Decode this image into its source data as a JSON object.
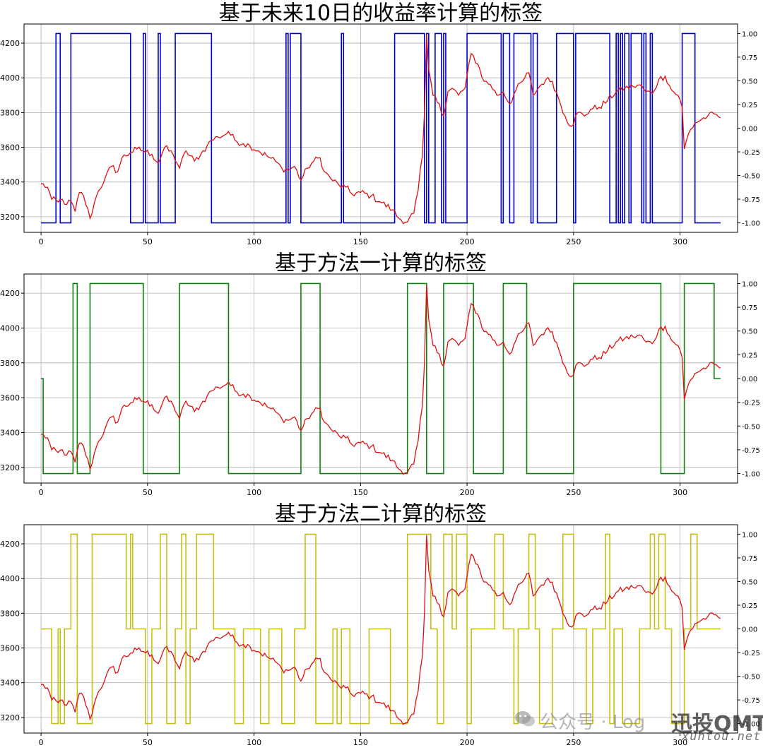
{
  "chart_data": [
    {
      "type": "line",
      "title": "基于未来10日的收益率计算的标签",
      "xticks": [
        0,
        50,
        100,
        150,
        200,
        250,
        300
      ],
      "ylim": [
        3110,
        4310
      ],
      "yticks": [
        3200,
        3400,
        3600,
        3800,
        4000,
        4200
      ],
      "y2lim": [
        -1.1,
        1.1
      ],
      "y2ticks": [
        "1.00",
        "0.75",
        "0.50",
        "0.25",
        "0.00",
        "-0.25",
        "-0.50",
        "-0.75",
        "-1.00"
      ],
      "grid": true,
      "price_color": "#e01010",
      "label_color": "#0000cc",
      "label_changes": [
        [
          0,
          -1
        ],
        [
          7,
          1
        ],
        [
          9,
          -1
        ],
        [
          14,
          1
        ],
        [
          42,
          -1
        ],
        [
          48,
          1
        ],
        [
          49,
          -1
        ],
        [
          55,
          1
        ],
        [
          56,
          -1
        ],
        [
          63,
          1
        ],
        [
          80,
          -1
        ],
        [
          115,
          1
        ],
        [
          116,
          -1
        ],
        [
          117,
          1
        ],
        [
          122,
          -1
        ],
        [
          141,
          1
        ],
        [
          142,
          -1
        ],
        [
          166,
          1
        ],
        [
          180,
          -1
        ],
        [
          181,
          1
        ],
        [
          182,
          -1
        ],
        [
          185,
          1
        ],
        [
          188,
          -1
        ],
        [
          189,
          1
        ],
        [
          190,
          -1
        ],
        [
          200,
          1
        ],
        [
          216,
          -1
        ],
        [
          217,
          1
        ],
        [
          220,
          -1
        ],
        [
          222,
          1
        ],
        [
          230,
          -1
        ],
        [
          231,
          1
        ],
        [
          233,
          -1
        ],
        [
          242,
          1
        ],
        [
          250,
          -1
        ],
        [
          251,
          1
        ],
        [
          267,
          -1
        ],
        [
          270,
          1
        ],
        [
          271,
          -1
        ],
        [
          272,
          1
        ],
        [
          273,
          -1
        ],
        [
          274,
          1
        ],
        [
          276,
          -1
        ],
        [
          277,
          1
        ],
        [
          282,
          -1
        ],
        [
          283,
          1
        ],
        [
          284,
          -1
        ],
        [
          286,
          1
        ],
        [
          287,
          -1
        ],
        [
          301,
          1
        ],
        [
          307,
          -1
        ],
        [
          319,
          -1
        ]
      ]
    },
    {
      "type": "line",
      "title": "基于方法一计算的标签",
      "xticks": [
        0,
        50,
        100,
        150,
        200,
        250,
        300
      ],
      "ylim": [
        3110,
        4310
      ],
      "yticks": [
        3200,
        3400,
        3600,
        3800,
        4000,
        4200
      ],
      "y2lim": [
        -1.1,
        1.1
      ],
      "y2ticks": [
        "1.00",
        "0.75",
        "0.50",
        "0.25",
        "0.00",
        "-0.25",
        "-0.50",
        "-0.75",
        "-1.00"
      ],
      "grid": true,
      "price_color": "#e01010",
      "label_color": "#108010",
      "label_changes": [
        [
          0,
          0
        ],
        [
          1,
          -1
        ],
        [
          15,
          1
        ],
        [
          17,
          -1
        ],
        [
          23,
          1
        ],
        [
          48,
          -1
        ],
        [
          65,
          1
        ],
        [
          88,
          -1
        ],
        [
          122,
          1
        ],
        [
          131,
          -1
        ],
        [
          172,
          1
        ],
        [
          181,
          -1
        ],
        [
          189,
          1
        ],
        [
          203,
          -1
        ],
        [
          217,
          1
        ],
        [
          228,
          -1
        ],
        [
          250,
          1
        ],
        [
          291,
          -1
        ],
        [
          302,
          1
        ],
        [
          316,
          0
        ],
        [
          319,
          0
        ]
      ]
    },
    {
      "type": "line",
      "title": "基于方法二计算的标签",
      "xticks": [
        0,
        50,
        100,
        150,
        200,
        250,
        300
      ],
      "ylim": [
        3110,
        4310
      ],
      "yticks": [
        3200,
        3400,
        3600,
        3800,
        4000,
        4200
      ],
      "y2lim": [
        -1.1,
        1.1
      ],
      "y2ticks": [
        "1.00",
        "0.75",
        "0.50",
        "0.25",
        "0.00",
        "-0.25",
        "-0.50",
        "-0.75",
        "-1.00"
      ],
      "grid": true,
      "price_color": "#e01010",
      "label_color": "#c8c010",
      "label_changes": [
        [
          0,
          0
        ],
        [
          5,
          -1
        ],
        [
          8,
          0
        ],
        [
          9,
          -1
        ],
        [
          11,
          0
        ],
        [
          14,
          1
        ],
        [
          17,
          -1
        ],
        [
          24,
          1
        ],
        [
          40,
          0
        ],
        [
          42,
          1
        ],
        [
          43,
          0
        ],
        [
          49,
          -1
        ],
        [
          52,
          0
        ],
        [
          56,
          1
        ],
        [
          59,
          -1
        ],
        [
          63,
          0
        ],
        [
          66,
          1
        ],
        [
          68,
          -1
        ],
        [
          70,
          0
        ],
        [
          73,
          1
        ],
        [
          81,
          0
        ],
        [
          91,
          -1
        ],
        [
          95,
          0
        ],
        [
          103,
          -1
        ],
        [
          107,
          0
        ],
        [
          113,
          -1
        ],
        [
          119,
          0
        ],
        [
          124,
          1
        ],
        [
          129,
          -1
        ],
        [
          137,
          0
        ],
        [
          139,
          -1
        ],
        [
          141,
          0
        ],
        [
          145,
          -1
        ],
        [
          154,
          0
        ],
        [
          164,
          -1
        ],
        [
          172,
          1
        ],
        [
          183,
          0
        ],
        [
          186,
          -1
        ],
        [
          189,
          1
        ],
        [
          193,
          0
        ],
        [
          195,
          1
        ],
        [
          200,
          -1
        ],
        [
          202,
          0
        ],
        [
          213,
          1
        ],
        [
          217,
          0
        ],
        [
          222,
          -1
        ],
        [
          224,
          0
        ],
        [
          229,
          1
        ],
        [
          232,
          0
        ],
        [
          234,
          -1
        ],
        [
          240,
          0
        ],
        [
          245,
          1
        ],
        [
          250,
          0
        ],
        [
          256,
          -1
        ],
        [
          259,
          0
        ],
        [
          265,
          1
        ],
        [
          267,
          -1
        ],
        [
          269,
          0
        ],
        [
          273,
          -1
        ],
        [
          281,
          0
        ],
        [
          286,
          1
        ],
        [
          288,
          0
        ],
        [
          290,
          1
        ],
        [
          293,
          0
        ],
        [
          296,
          -1
        ],
        [
          302,
          0
        ],
        [
          305,
          1
        ],
        [
          308,
          0
        ],
        [
          319,
          0
        ]
      ]
    }
  ],
  "price_series": {
    "x_start": 0,
    "x_end": 319,
    "anchors": [
      [
        0,
        3390
      ],
      [
        3,
        3370
      ],
      [
        5,
        3300
      ],
      [
        8,
        3285
      ],
      [
        10,
        3300
      ],
      [
        12,
        3270
      ],
      [
        14,
        3290
      ],
      [
        16,
        3230
      ],
      [
        18,
        3340
      ],
      [
        20,
        3320
      ],
      [
        23,
        3190
      ],
      [
        25,
        3280
      ],
      [
        27,
        3350
      ],
      [
        30,
        3420
      ],
      [
        33,
        3490
      ],
      [
        36,
        3460
      ],
      [
        38,
        3540
      ],
      [
        42,
        3570
      ],
      [
        45,
        3590
      ],
      [
        48,
        3580
      ],
      [
        52,
        3560
      ],
      [
        55,
        3510
      ],
      [
        58,
        3600
      ],
      [
        62,
        3560
      ],
      [
        65,
        3480
      ],
      [
        68,
        3580
      ],
      [
        72,
        3520
      ],
      [
        75,
        3560
      ],
      [
        78,
        3610
      ],
      [
        80,
        3640
      ],
      [
        83,
        3660
      ],
      [
        86,
        3670
      ],
      [
        88,
        3690
      ],
      [
        91,
        3640
      ],
      [
        95,
        3620
      ],
      [
        98,
        3610
      ],
      [
        102,
        3580
      ],
      [
        106,
        3550
      ],
      [
        110,
        3520
      ],
      [
        113,
        3480
      ],
      [
        116,
        3470
      ],
      [
        119,
        3490
      ],
      [
        122,
        3410
      ],
      [
        125,
        3480
      ],
      [
        128,
        3520
      ],
      [
        131,
        3540
      ],
      [
        133,
        3460
      ],
      [
        136,
        3420
      ],
      [
        140,
        3380
      ],
      [
        143,
        3370
      ],
      [
        146,
        3330
      ],
      [
        150,
        3340
      ],
      [
        155,
        3320
      ],
      [
        160,
        3280
      ],
      [
        165,
        3240
      ],
      [
        168,
        3190
      ],
      [
        172,
        3170
      ],
      [
        175,
        3220
      ],
      [
        177,
        3350
      ],
      [
        179,
        3550
      ],
      [
        180,
        3800
      ],
      [
        181,
        4250
      ],
      [
        182,
        4050
      ],
      [
        184,
        3900
      ],
      [
        187,
        3850
      ],
      [
        189,
        3780
      ],
      [
        191,
        3920
      ],
      [
        193,
        3940
      ],
      [
        196,
        3900
      ],
      [
        199,
        3940
      ],
      [
        202,
        4140
      ],
      [
        205,
        4080
      ],
      [
        208,
        3980
      ],
      [
        211,
        3960
      ],
      [
        214,
        3900
      ],
      [
        217,
        3920
      ],
      [
        220,
        3850
      ],
      [
        223,
        3930
      ],
      [
        226,
        3980
      ],
      [
        229,
        4030
      ],
      [
        231,
        3900
      ],
      [
        234,
        3950
      ],
      [
        237,
        3990
      ],
      [
        240,
        3980
      ],
      [
        243,
        3880
      ],
      [
        246,
        3780
      ],
      [
        249,
        3720
      ],
      [
        252,
        3800
      ],
      [
        255,
        3780
      ],
      [
        258,
        3820
      ],
      [
        262,
        3830
      ],
      [
        266,
        3870
      ],
      [
        270,
        3920
      ],
      [
        274,
        3940
      ],
      [
        278,
        3950
      ],
      [
        281,
        3960
      ],
      [
        284,
        3920
      ],
      [
        287,
        3910
      ],
      [
        290,
        3990
      ],
      [
        293,
        4010
      ],
      [
        296,
        3930
      ],
      [
        299,
        3900
      ],
      [
        301,
        3830
      ],
      [
        302,
        3590
      ],
      [
        304,
        3680
      ],
      [
        307,
        3740
      ],
      [
        310,
        3760
      ],
      [
        313,
        3780
      ],
      [
        317,
        3790
      ],
      [
        319,
        3770
      ]
    ]
  },
  "watermark": {
    "wechat_text": "公众号 · Log",
    "logo_text": "迅投QMT",
    "site_text": "xuntou.net"
  }
}
